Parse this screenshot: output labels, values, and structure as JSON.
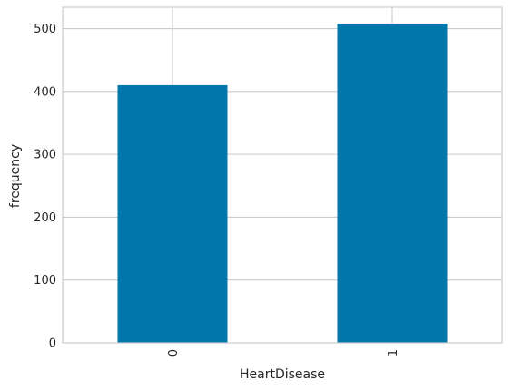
{
  "chart_data": {
    "type": "bar",
    "title": "",
    "xlabel": "HeartDisease",
    "ylabel": "frequency",
    "categories": [
      "0",
      "1"
    ],
    "values": [
      410,
      508
    ],
    "ylim": [
      0,
      534
    ],
    "yticks": [
      "0",
      "100",
      "200",
      "300",
      "400",
      "500"
    ],
    "grid": true,
    "legend": "none",
    "bar_color": "#0077aa",
    "grid_color": "#cccccc",
    "x_tick_rotation": 90
  }
}
